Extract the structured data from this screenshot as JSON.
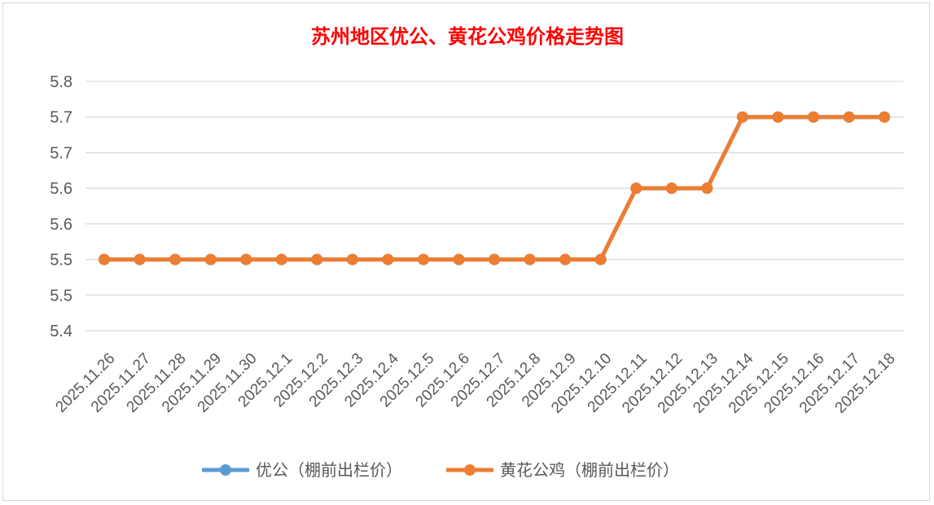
{
  "chart_data": {
    "type": "line",
    "title": "苏州地区优公、黄花公鸡价格走势图",
    "title_color": "#ff0000",
    "categories": [
      "2025.11.26",
      "2025.11.27",
      "2025.11.28",
      "2025.11.29",
      "2025.11.30",
      "2025.12.1",
      "2025.12.2",
      "2025.12.3",
      "2025.12.4",
      "2025.12.5",
      "2025.12.6",
      "2025.12.7",
      "2025.12.8",
      "2025.12.9",
      "2025.12.10",
      "2025.12.11",
      "2025.12.12",
      "2025.12.13",
      "2025.12.14",
      "2025.12.15",
      "2025.12.16",
      "2025.12.17",
      "2025.12.18"
    ],
    "y_ticks": [
      "5.4",
      "5.5",
      "5.5",
      "5.6",
      "5.6",
      "5.7",
      "5.7",
      "5.8"
    ],
    "ylim": [
      5.4,
      5.75
    ],
    "grid": true,
    "legend_position": "bottom",
    "series": [
      {
        "name": "优公（棚前出栏价）",
        "color": "#5b9bd5",
        "values": [
          5.5,
          5.5,
          5.5,
          5.5,
          5.5,
          5.5,
          5.5,
          5.5,
          5.5,
          5.5,
          5.5,
          5.5,
          5.5,
          5.5,
          5.5,
          5.6,
          5.6,
          5.6,
          5.7,
          5.7,
          5.7,
          5.7,
          5.7
        ]
      },
      {
        "name": "黄花公鸡（棚前出栏价）",
        "color": "#ed7d31",
        "values": [
          5.5,
          5.5,
          5.5,
          5.5,
          5.5,
          5.5,
          5.5,
          5.5,
          5.5,
          5.5,
          5.5,
          5.5,
          5.5,
          5.5,
          5.5,
          5.6,
          5.6,
          5.6,
          5.7,
          5.7,
          5.7,
          5.7,
          5.7
        ]
      }
    ]
  }
}
